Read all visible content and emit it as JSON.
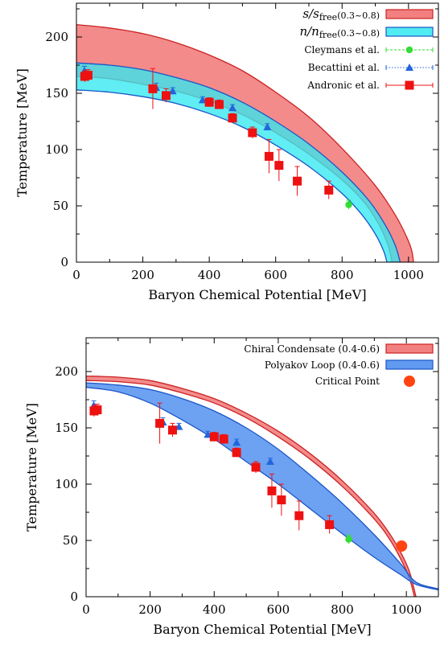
{
  "chart_data": [
    {
      "type": "band",
      "xlabel": "Baryon Chemical Potential  [MeV]",
      "ylabel": "Temperature  [MeV]",
      "xlim": [
        0,
        1090
      ],
      "ylim": [
        0,
        230
      ],
      "xticks": [
        0,
        200,
        400,
        600,
        800,
        1000
      ],
      "yticks": [
        0,
        50,
        100,
        150,
        200
      ],
      "legend_position": "top-right",
      "bands": [
        {
          "name": "s/sfree",
          "name_italic": "s/s",
          "name_sub": "free",
          "name_range": "(0.3~0.8)",
          "color": "#f06a6a",
          "stroke": "#cc2222",
          "upper": [
            [
              0,
              211
            ],
            [
              100,
              208
            ],
            [
              200,
              203
            ],
            [
              300,
              195
            ],
            [
              400,
              184
            ],
            [
              500,
              170
            ],
            [
              600,
              151
            ],
            [
              700,
              129
            ],
            [
              800,
              101
            ],
            [
              900,
              68
            ],
            [
              960,
              42
            ],
            [
              995,
              22
            ],
            [
              1010,
              10
            ],
            [
              1015,
              0
            ]
          ],
          "lower": [
            [
              0,
              165
            ],
            [
              100,
              163
            ],
            [
              200,
              158
            ],
            [
              300,
              152
            ],
            [
              400,
              143
            ],
            [
              500,
              131
            ],
            [
              600,
              115
            ],
            [
              700,
              96
            ],
            [
              800,
              73
            ],
            [
              870,
              52
            ],
            [
              910,
              34
            ],
            [
              935,
              18
            ],
            [
              945,
              8
            ],
            [
              950,
              0
            ]
          ]
        },
        {
          "name": "n/nfree",
          "name_italic": "n/n",
          "name_sub": "free",
          "name_range": "(0.3~0.8)",
          "color": "#33e8f0",
          "stroke": "#1a55c8",
          "upper": [
            [
              0,
              177
            ],
            [
              100,
              175
            ],
            [
              200,
              171
            ],
            [
              300,
              164
            ],
            [
              400,
              155
            ],
            [
              500,
              142
            ],
            [
              600,
              125
            ],
            [
              700,
              105
            ],
            [
              800,
              80
            ],
            [
              880,
              55
            ],
            [
              930,
              33
            ],
            [
              960,
              15
            ],
            [
              975,
              0
            ]
          ],
          "lower": [
            [
              0,
              153
            ],
            [
              100,
              151
            ],
            [
              200,
              147
            ],
            [
              300,
              141
            ],
            [
              400,
              132
            ],
            [
              500,
              120
            ],
            [
              600,
              104
            ],
            [
              700,
              85
            ],
            [
              800,
              61
            ],
            [
              860,
              42
            ],
            [
              900,
              25
            ],
            [
              925,
              10
            ],
            [
              935,
              0
            ]
          ]
        }
      ],
      "series": [
        {
          "name": "Cleymans et al.",
          "marker": "circle",
          "color": "#33dd33",
          "points": [
            {
              "x": 820,
              "y": 51,
              "yerr": 4
            }
          ]
        },
        {
          "name": "Becattini et al.",
          "marker": "triangle",
          "color": "#2266dd",
          "points": [
            {
              "x": 24,
              "y": 170,
              "yerr": 4
            },
            {
              "x": 240,
              "y": 155,
              "yerr": 4
            },
            {
              "x": 290,
              "y": 152,
              "yerr": 3
            },
            {
              "x": 380,
              "y": 144,
              "yerr": 3
            },
            {
              "x": 470,
              "y": 137,
              "yerr": 3
            },
            {
              "x": 575,
              "y": 120,
              "yerr": 3
            }
          ]
        },
        {
          "name": "Andronic et al.",
          "marker": "square",
          "color": "#ee1111",
          "points": [
            {
              "x": 25,
              "y": 165,
              "yerr": 5
            },
            {
              "x": 35,
              "y": 166,
              "yerr": 5
            },
            {
              "x": 230,
              "y": 154,
              "yerr": 18
            },
            {
              "x": 270,
              "y": 148,
              "yerr": 6
            },
            {
              "x": 400,
              "y": 142,
              "yerr": 4
            },
            {
              "x": 430,
              "y": 140,
              "yerr": 4
            },
            {
              "x": 470,
              "y": 128,
              "yerr": 4
            },
            {
              "x": 530,
              "y": 115,
              "yerr": 5
            },
            {
              "x": 580,
              "y": 94,
              "yerr": 15
            },
            {
              "x": 610,
              "y": 86,
              "yerr": 14
            },
            {
              "x": 665,
              "y": 72,
              "yerr": 13
            },
            {
              "x": 760,
              "y": 64,
              "yerr": 8
            }
          ]
        }
      ]
    },
    {
      "type": "band",
      "xlabel": "Baryon Chemical Potential  [MeV]",
      "ylabel": "Temperature  [MeV]",
      "xlim": [
        0,
        1100
      ],
      "ylim": [
        0,
        230
      ],
      "xticks": [
        0,
        200,
        400,
        600,
        800,
        1000
      ],
      "yticks": [
        0,
        50,
        100,
        150,
        200
      ],
      "legend_position": "top-right",
      "bands": [
        {
          "name": "Chiral Condensate (0.4-0.6)",
          "color": "#f06a6a",
          "stroke": "#cc2222",
          "upper": [
            [
              0,
              196
            ],
            [
              100,
              195
            ],
            [
              200,
              192
            ],
            [
              300,
              185
            ],
            [
              400,
              176
            ],
            [
              500,
              163
            ],
            [
              600,
              147
            ],
            [
              700,
              127
            ],
            [
              800,
              103
            ],
            [
              900,
              74
            ],
            [
              950,
              55
            ],
            [
              985,
              38
            ],
            [
              1010,
              22
            ],
            [
              1030,
              0
            ]
          ],
          "lower": [
            [
              0,
              192
            ],
            [
              100,
              191
            ],
            [
              200,
              188
            ],
            [
              300,
              181
            ],
            [
              400,
              172
            ],
            [
              500,
              159
            ],
            [
              600,
              142
            ],
            [
              700,
              122
            ],
            [
              800,
              98
            ],
            [
              900,
              69
            ],
            [
              950,
              50
            ],
            [
              985,
              32
            ],
            [
              1010,
              16
            ],
            [
              1025,
              0
            ]
          ]
        },
        {
          "name": "Polyakov Loop (0.4-0.6)",
          "color": "#4488ee",
          "stroke": "#1a55c8",
          "upper": [
            [
              0,
              190
            ],
            [
              100,
              188
            ],
            [
              200,
              184
            ],
            [
              300,
              176
            ],
            [
              400,
              165
            ],
            [
              500,
              150
            ],
            [
              600,
              131
            ],
            [
              700,
              108
            ],
            [
              800,
              83
            ],
            [
              900,
              55
            ],
            [
              980,
              30
            ],
            [
              1030,
              13
            ],
            [
              1100,
              7
            ]
          ],
          "lower": [
            [
              0,
              186
            ],
            [
              100,
              182
            ],
            [
              200,
              172
            ],
            [
              300,
              157
            ],
            [
              400,
              140
            ],
            [
              500,
              120
            ],
            [
              600,
              100
            ],
            [
              700,
              78
            ],
            [
              800,
              56
            ],
            [
              900,
              35
            ],
            [
              980,
              20
            ],
            [
              1030,
              11
            ],
            [
              1100,
              6
            ]
          ]
        }
      ],
      "series": [
        {
          "name": "Critical Point",
          "marker": "big-circle",
          "color": "#ff4411",
          "points": [
            {
              "x": 985,
              "y": 45
            }
          ]
        },
        {
          "name": "",
          "marker": "circle",
          "color": "#33dd33",
          "points": [
            {
              "x": 820,
              "y": 51,
              "yerr": 4
            }
          ]
        },
        {
          "name": "",
          "marker": "triangle",
          "color": "#2266dd",
          "points": [
            {
              "x": 24,
              "y": 170,
              "yerr": 4
            },
            {
              "x": 240,
              "y": 155,
              "yerr": 4
            },
            {
              "x": 290,
              "y": 151,
              "yerr": 3
            },
            {
              "x": 380,
              "y": 144,
              "yerr": 3
            },
            {
              "x": 470,
              "y": 137,
              "yerr": 3
            },
            {
              "x": 575,
              "y": 120,
              "yerr": 3
            }
          ]
        },
        {
          "name": "",
          "marker": "square",
          "color": "#ee1111",
          "points": [
            {
              "x": 25,
              "y": 165,
              "yerr": 5
            },
            {
              "x": 35,
              "y": 166,
              "yerr": 5
            },
            {
              "x": 230,
              "y": 154,
              "yerr": 18
            },
            {
              "x": 270,
              "y": 148,
              "yerr": 6
            },
            {
              "x": 400,
              "y": 142,
              "yerr": 4
            },
            {
              "x": 430,
              "y": 140,
              "yerr": 4
            },
            {
              "x": 470,
              "y": 128,
              "yerr": 4
            },
            {
              "x": 530,
              "y": 115,
              "yerr": 5
            },
            {
              "x": 580,
              "y": 94,
              "yerr": 15
            },
            {
              "x": 610,
              "y": 86,
              "yerr": 14
            },
            {
              "x": 665,
              "y": 72,
              "yerr": 13
            },
            {
              "x": 760,
              "y": 64,
              "yerr": 8
            }
          ]
        }
      ]
    }
  ]
}
